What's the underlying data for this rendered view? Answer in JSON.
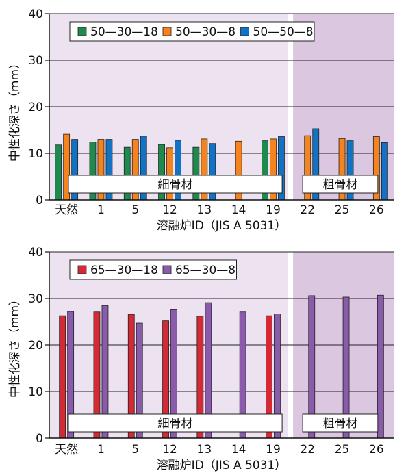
{
  "chart_data": [
    {
      "type": "bar",
      "xlabel": "溶融炉ID（JIS A 5031）",
      "ylabel": "中性化深さ（mm）",
      "ylim": [
        0,
        40
      ],
      "yticks": [
        0,
        10,
        20,
        30,
        40
      ],
      "categories": [
        "天然",
        "1",
        "5",
        "12",
        "13",
        "14",
        "19",
        "22",
        "25",
        "26"
      ],
      "legend": "top-left",
      "grid": true,
      "series": [
        {
          "name": "50—30—18",
          "color": "#1e8a4e",
          "values": [
            11.8,
            12.4,
            11.3,
            11.9,
            11.3,
            null,
            12.7,
            null,
            null,
            null
          ]
        },
        {
          "name": "50—30—8",
          "color": "#f5841f",
          "values": [
            14.1,
            13.0,
            13.0,
            11.2,
            13.1,
            12.6,
            13.1,
            13.8,
            13.2,
            13.6
          ]
        },
        {
          "name": "50—50—8",
          "color": "#1273c4",
          "values": [
            13.0,
            13.0,
            13.7,
            12.8,
            12.1,
            null,
            13.6,
            15.3,
            12.7,
            12.3
          ]
        }
      ],
      "bands": [
        {
          "label": "細骨材",
          "from": "天然",
          "to": "19",
          "color": "#ede2ef"
        },
        {
          "label": "粗骨材",
          "from": "22",
          "to": "26",
          "color": "#dcc7e0"
        }
      ]
    },
    {
      "type": "bar",
      "xlabel": "溶融炉ID（JIS A 5031）",
      "ylabel": "中性化深さ（mm）",
      "ylim": [
        0,
        40
      ],
      "yticks": [
        0,
        10,
        20,
        30,
        40
      ],
      "categories": [
        "天然",
        "1",
        "5",
        "12",
        "13",
        "14",
        "19",
        "22",
        "25",
        "26"
      ],
      "legend": "top-left",
      "grid": true,
      "series": [
        {
          "name": "65—30—18",
          "color": "#d42a36",
          "values": [
            26.3,
            27.1,
            26.6,
            25.2,
            26.2,
            null,
            26.3,
            null,
            null,
            null
          ]
        },
        {
          "name": "65—30—8",
          "color": "#8a5aab",
          "values": [
            27.2,
            28.5,
            24.7,
            27.6,
            29.1,
            27.1,
            26.7,
            30.6,
            30.3,
            30.7
          ]
        }
      ],
      "bands": [
        {
          "label": "細骨材",
          "from": "天然",
          "to": "19",
          "color": "#ede2ef"
        },
        {
          "label": "粗骨材",
          "from": "22",
          "to": "26",
          "color": "#dcc7e0"
        }
      ]
    }
  ]
}
